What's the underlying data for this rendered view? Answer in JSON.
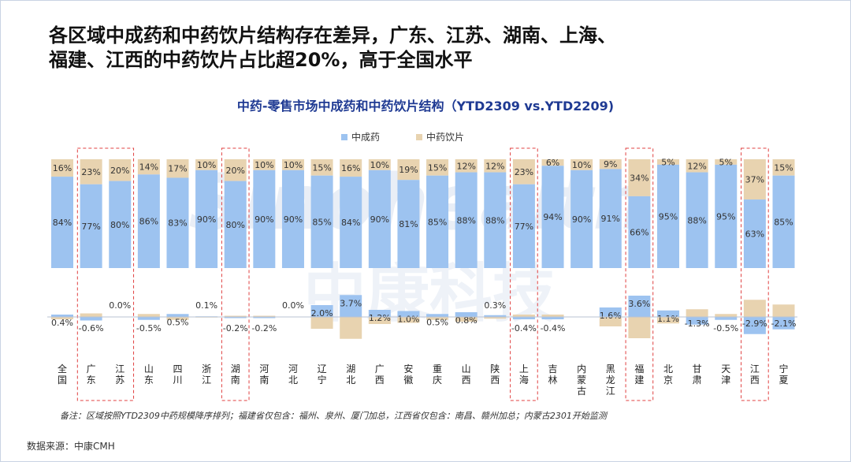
{
  "page": {
    "headline_line1": "各区域中成药和中药饮片结构存在差异，广东、江苏、湖南、上海、",
    "headline_line2": "福建、江西的中药饮片占比超20%，高于全国水平",
    "footnote": "备注：区域按照YTD2309中药规模降序排列；福建省仅包含：福州、泉州、厦门加总，江西省仅包含：南昌、赣州加总；内蒙古2301开始监测",
    "source": "数据来源：中康CMH",
    "watermark_en": "Sinohealth",
    "watermark_cn": "中康科技"
  },
  "colors": {
    "tcm_patent": "#9dc3f0",
    "tcm_pieces": "#e8d3b0",
    "highlight_box": "#e04040",
    "title": "#1f3a93"
  },
  "chart_data": {
    "type": "bar",
    "title": "中药-零售市场中成药和中药饮片结构（YTD2309 vs.YTD2209)",
    "legend_position": "top-center",
    "categories": [
      "全国",
      "广东",
      "江苏",
      "山东",
      "四川",
      "浙江",
      "湖南",
      "河南",
      "河北",
      "辽宁",
      "湖北",
      "广西",
      "安徽",
      "重庆",
      "山西",
      "陕西",
      "上海",
      "吉林",
      "内蒙古",
      "黑龙江",
      "福建",
      "北京",
      "甘肃",
      "天津",
      "江西",
      "宁夏"
    ],
    "series": [
      {
        "name": "中成药",
        "values": [
          84,
          77,
          80,
          86,
          83,
          90,
          80,
          90,
          90,
          85,
          84,
          90,
          81,
          85,
          88,
          88,
          77,
          94,
          90,
          91,
          66,
          95,
          88,
          95,
          63,
          85
        ]
      },
      {
        "name": "中药饮片",
        "values": [
          16,
          23,
          20,
          14,
          17,
          10,
          20,
          10,
          10,
          15,
          16,
          10,
          19,
          15,
          12,
          12,
          23,
          6,
          10,
          9,
          34,
          5,
          12,
          5,
          37,
          15
        ]
      }
    ],
    "change_chart": {
      "labels": [
        "0.4%",
        "-0.6%",
        "0.0%",
        "-0.5%",
        "0.5%",
        "0.1%",
        "-0.2%",
        "-0.2%",
        "0.0%",
        "2.0%",
        "3.7%",
        "1.2%",
        "1.0%",
        "0.5%",
        "0.8%",
        "0.3%",
        "-0.4%",
        "-0.4%",
        "",
        "1.6%",
        "3.6%",
        "1.1%",
        "-1.3%",
        "-0.5%",
        "-2.9%",
        "-2.1%"
      ],
      "tcm_patent_change": [
        0.4,
        -0.6,
        0.0,
        -0.5,
        0.5,
        0.1,
        -0.2,
        -0.2,
        0.0,
        2.0,
        3.7,
        1.2,
        1.0,
        0.5,
        0.8,
        0.3,
        -0.4,
        -0.4,
        0,
        1.6,
        3.6,
        1.1,
        -1.3,
        -0.5,
        -2.9,
        -2.1
      ],
      "tcm_pieces_change": [
        -0.4,
        0.6,
        0.0,
        0.5,
        -0.5,
        -0.1,
        0.2,
        0.2,
        0.0,
        -2.0,
        -3.7,
        -1.2,
        -1.0,
        -0.5,
        -0.8,
        -0.3,
        0.4,
        0.4,
        0,
        -1.6,
        -3.6,
        -1.1,
        1.3,
        0.5,
        2.9,
        2.1
      ]
    },
    "highlighted": [
      "广东",
      "江苏",
      "湖南",
      "上海",
      "福建",
      "江西"
    ],
    "ylim": [
      0,
      100
    ]
  }
}
